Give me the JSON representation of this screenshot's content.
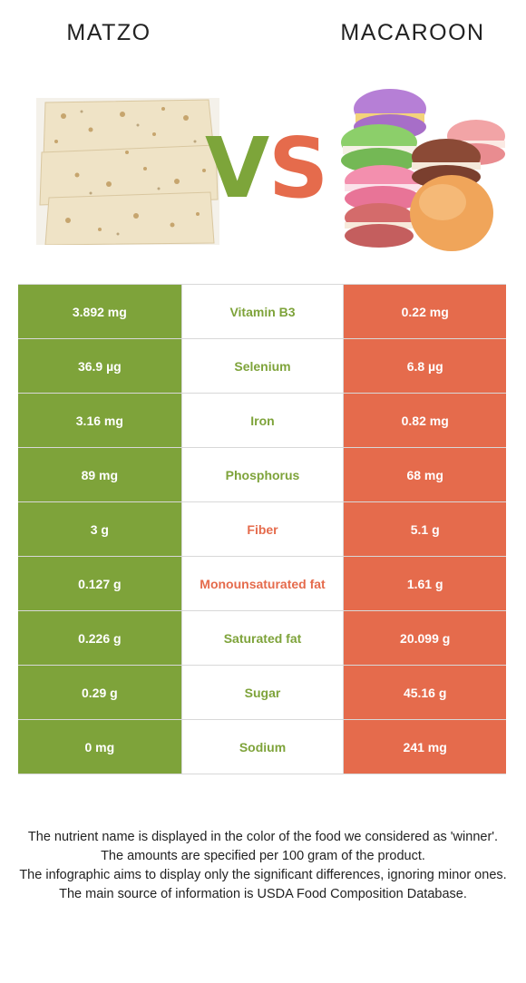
{
  "header": {
    "left_food": "MATZO",
    "right_food": "MACAROON",
    "vs_v": "V",
    "vs_s": "S"
  },
  "colors": {
    "left": "#7ea33a",
    "right": "#e56b4c"
  },
  "images": {
    "left": "matzo-photo",
    "right": "macaroon-photo"
  },
  "rows": [
    {
      "left": "3.892 mg",
      "nutrient": "Vitamin B3",
      "right": "0.22 mg",
      "winner": "left"
    },
    {
      "left": "36.9 µg",
      "nutrient": "Selenium",
      "right": "6.8 µg",
      "winner": "left"
    },
    {
      "left": "3.16 mg",
      "nutrient": "Iron",
      "right": "0.82 mg",
      "winner": "left"
    },
    {
      "left": "89 mg",
      "nutrient": "Phosphorus",
      "right": "68 mg",
      "winner": "left"
    },
    {
      "left": "3 g",
      "nutrient": "Fiber",
      "right": "5.1 g",
      "winner": "right"
    },
    {
      "left": "0.127 g",
      "nutrient": "Monounsaturated fat",
      "right": "1.61 g",
      "winner": "right"
    },
    {
      "left": "0.226 g",
      "nutrient": "Saturated fat",
      "right": "20.099 g",
      "winner": "left"
    },
    {
      "left": "0.29 g",
      "nutrient": "Sugar",
      "right": "45.16 g",
      "winner": "left"
    },
    {
      "left": "0 mg",
      "nutrient": "Sodium",
      "right": "241 mg",
      "winner": "left"
    }
  ],
  "footer": {
    "line1": "The nutrient name is displayed in the color of the food we considered as 'winner'.",
    "line2": "The amounts are specified per 100 gram of the product.",
    "line3": "The infographic aims to display only the significant differences, ignoring minor ones.",
    "line4": "The main source of information is USDA Food Composition Database."
  }
}
